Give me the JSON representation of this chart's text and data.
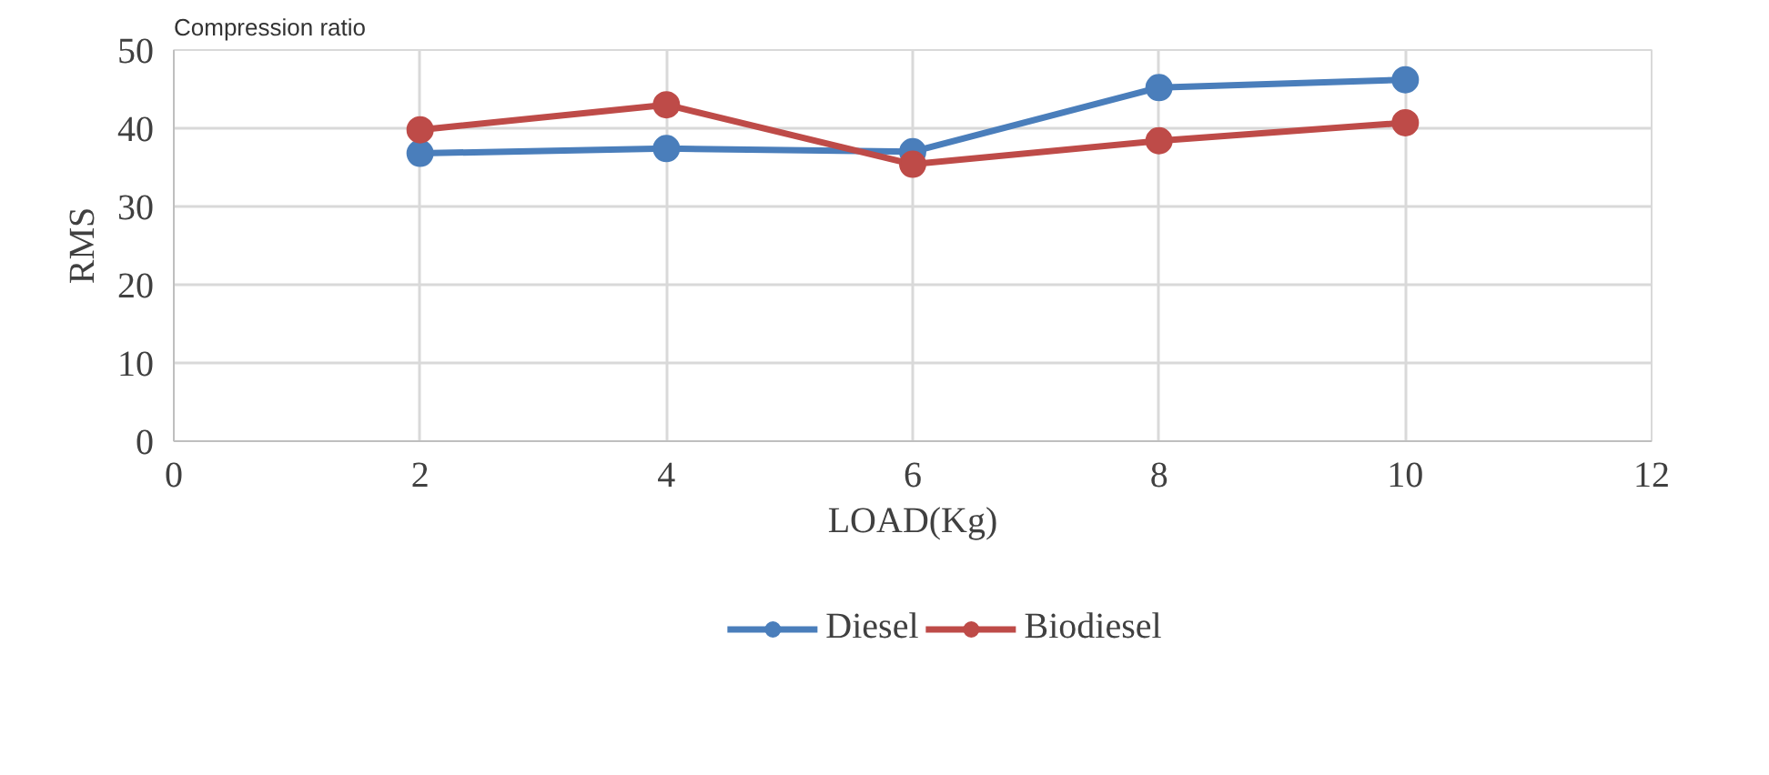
{
  "chart_data": {
    "type": "line",
    "title": "Compression ratio",
    "xlabel": "LOAD(Kg)",
    "ylabel": "RMS",
    "x": [
      2,
      4,
      6,
      8,
      10
    ],
    "series": [
      {
        "name": "Diesel",
        "color": "#4a7ebb",
        "values": [
          36.8,
          37.4,
          37,
          45.2,
          46.2
        ]
      },
      {
        "name": "Biodiesel",
        "color": "#be4b48",
        "values": [
          39.8,
          43,
          35.4,
          38.4,
          40.7
        ]
      }
    ],
    "xlim": [
      0,
      12
    ],
    "xticks": [
      0,
      2,
      4,
      6,
      8,
      10,
      12
    ],
    "ylim": [
      0,
      50
    ],
    "yticks": [
      0,
      10,
      20,
      30,
      40,
      50
    ],
    "grid": true,
    "legend": "bottom",
    "marker": "circle",
    "line_style": "solid"
  }
}
